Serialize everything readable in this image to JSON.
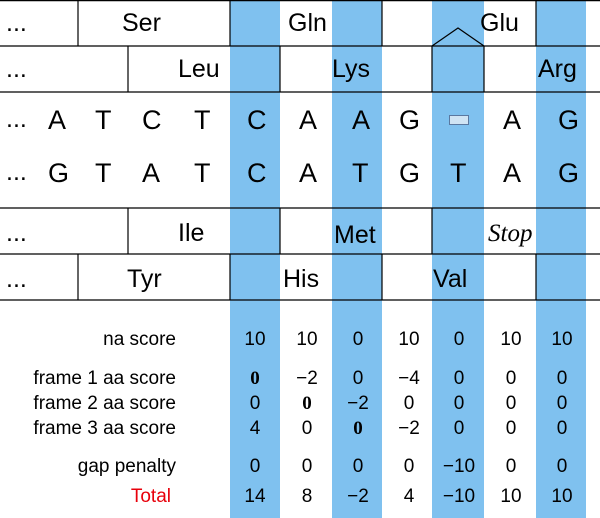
{
  "colors": {
    "highlight": "#7fc1ef",
    "total_label": "#e8000b",
    "gap_symbol": "#5a78a0"
  },
  "frames": {
    "ellipsis": "...",
    "top1": [
      "Ser",
      "Gln",
      "Glu"
    ],
    "top2": [
      "Leu",
      "Lys",
      "Arg"
    ],
    "bottom1": [
      "Ile",
      "Met",
      "Stop"
    ],
    "bottom2": [
      "Tyr",
      "His",
      "Val"
    ]
  },
  "sequences": {
    "seq1": [
      "A",
      "T",
      "C",
      "T",
      "C",
      "A",
      "A",
      "G",
      "",
      "A",
      "G"
    ],
    "seq2": [
      "G",
      "T",
      "A",
      "T",
      "C",
      "A",
      "T",
      "G",
      "T",
      "A",
      "G"
    ],
    "gap_symbol": "gap-icon"
  },
  "scores": {
    "labels": [
      "na score",
      "frame 1 aa score",
      "frame 2 aa score",
      "frame 3 aa score",
      "gap penalty",
      "Total"
    ],
    "na_score": [
      "10",
      "10",
      "0",
      "10",
      "0",
      "10",
      "10"
    ],
    "frame1": [
      "0",
      "−2",
      "0",
      "−4",
      "0",
      "0",
      "0"
    ],
    "frame2": [
      "0",
      "0",
      "−2",
      "0",
      "0",
      "0",
      "0"
    ],
    "frame3": [
      "4",
      "0",
      "0",
      "−2",
      "0",
      "0",
      "0"
    ],
    "gap_penalty": [
      "0",
      "0",
      "0",
      "0",
      "−10",
      "0",
      "0"
    ],
    "total": [
      "14",
      "8",
      "−2",
      "4",
      "−10",
      "10",
      "10"
    ]
  }
}
